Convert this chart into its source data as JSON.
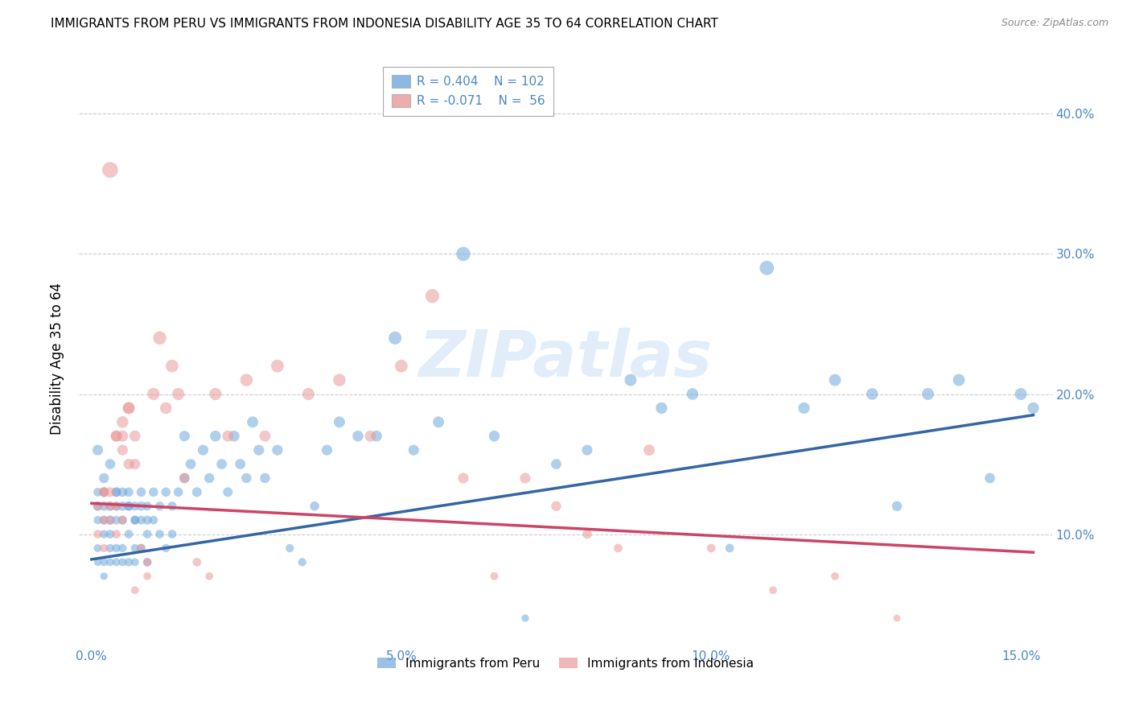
{
  "title": "IMMIGRANTS FROM PERU VS IMMIGRANTS FROM INDONESIA DISABILITY AGE 35 TO 64 CORRELATION CHART",
  "source": "Source: ZipAtlas.com",
  "xlabel_ticks": [
    "0.0%",
    "5.0%",
    "10.0%",
    "15.0%"
  ],
  "xlabel_tick_vals": [
    0.0,
    0.05,
    0.1,
    0.15
  ],
  "ylabel_ticks": [
    "10.0%",
    "20.0%",
    "30.0%",
    "40.0%"
  ],
  "ylabel_tick_vals": [
    0.1,
    0.2,
    0.3,
    0.4
  ],
  "xlim": [
    -0.002,
    0.155
  ],
  "ylim": [
    0.02,
    0.43
  ],
  "ylabel": "Disability Age 35 to 64",
  "legend_peru_r": "R = 0.404",
  "legend_peru_n": "N = 102",
  "legend_indonesia_r": "R = -0.071",
  "legend_indonesia_n": "N =  56",
  "peru_color": "#6fa8dc",
  "indonesia_color": "#ea9999",
  "peru_line_color": "#3465a4",
  "indonesia_line_color": "#cc4466",
  "trendline_peru_x0": 0.0,
  "trendline_peru_y0": 0.082,
  "trendline_peru_x1": 0.152,
  "trendline_peru_y1": 0.185,
  "trendline_indo_x0": 0.0,
  "trendline_indo_y0": 0.122,
  "trendline_indo_x1": 0.152,
  "trendline_indo_y1": 0.087,
  "background_color": "#ffffff",
  "grid_color": "#cccccc",
  "axis_color": "#4a86c8",
  "title_fontsize": 11,
  "source_fontsize": 9,
  "legend_fontsize": 11,
  "watermark": "ZIPatlas",
  "peru_scatter_x": [
    0.001,
    0.001,
    0.001,
    0.001,
    0.001,
    0.002,
    0.002,
    0.002,
    0.002,
    0.002,
    0.002,
    0.003,
    0.003,
    0.003,
    0.003,
    0.003,
    0.004,
    0.004,
    0.004,
    0.004,
    0.004,
    0.005,
    0.005,
    0.005,
    0.005,
    0.006,
    0.006,
    0.006,
    0.006,
    0.007,
    0.007,
    0.007,
    0.007,
    0.008,
    0.008,
    0.008,
    0.009,
    0.009,
    0.009,
    0.01,
    0.01,
    0.011,
    0.011,
    0.012,
    0.012,
    0.013,
    0.013,
    0.014,
    0.015,
    0.015,
    0.016,
    0.017,
    0.018,
    0.019,
    0.02,
    0.021,
    0.022,
    0.023,
    0.024,
    0.025,
    0.026,
    0.027,
    0.028,
    0.03,
    0.032,
    0.034,
    0.036,
    0.038,
    0.04,
    0.043,
    0.046,
    0.049,
    0.052,
    0.056,
    0.06,
    0.065,
    0.07,
    0.075,
    0.08,
    0.087,
    0.092,
    0.097,
    0.103,
    0.109,
    0.115,
    0.12,
    0.126,
    0.13,
    0.135,
    0.14,
    0.145,
    0.15,
    0.152,
    0.001,
    0.002,
    0.003,
    0.004,
    0.005,
    0.006,
    0.007,
    0.008,
    0.009
  ],
  "peru_scatter_y": [
    0.13,
    0.11,
    0.09,
    0.08,
    0.12,
    0.13,
    0.11,
    0.1,
    0.08,
    0.07,
    0.12,
    0.11,
    0.09,
    0.08,
    0.12,
    0.1,
    0.13,
    0.11,
    0.09,
    0.08,
    0.12,
    0.11,
    0.09,
    0.13,
    0.08,
    0.12,
    0.1,
    0.08,
    0.13,
    0.11,
    0.09,
    0.12,
    0.08,
    0.11,
    0.09,
    0.13,
    0.12,
    0.1,
    0.08,
    0.13,
    0.11,
    0.12,
    0.1,
    0.13,
    0.09,
    0.12,
    0.1,
    0.13,
    0.17,
    0.14,
    0.15,
    0.13,
    0.16,
    0.14,
    0.17,
    0.15,
    0.13,
    0.17,
    0.15,
    0.14,
    0.18,
    0.16,
    0.14,
    0.16,
    0.09,
    0.08,
    0.12,
    0.16,
    0.18,
    0.17,
    0.17,
    0.24,
    0.16,
    0.18,
    0.3,
    0.17,
    0.04,
    0.15,
    0.16,
    0.21,
    0.19,
    0.2,
    0.09,
    0.29,
    0.19,
    0.21,
    0.2,
    0.12,
    0.2,
    0.21,
    0.14,
    0.2,
    0.19,
    0.16,
    0.14,
    0.15,
    0.13,
    0.12,
    0.12,
    0.11,
    0.12,
    0.11
  ],
  "peru_sizes": [
    60,
    55,
    50,
    45,
    70,
    65,
    60,
    55,
    50,
    45,
    70,
    65,
    55,
    50,
    70,
    60,
    65,
    60,
    55,
    50,
    65,
    60,
    55,
    70,
    50,
    65,
    60,
    55,
    70,
    60,
    55,
    65,
    50,
    60,
    55,
    70,
    65,
    60,
    55,
    70,
    60,
    65,
    60,
    70,
    55,
    65,
    60,
    70,
    90,
    80,
    85,
    75,
    90,
    80,
    95,
    85,
    75,
    95,
    85,
    80,
    100,
    90,
    80,
    90,
    55,
    55,
    70,
    90,
    100,
    95,
    95,
    135,
    90,
    100,
    160,
    95,
    45,
    85,
    90,
    115,
    105,
    110,
    60,
    165,
    105,
    115,
    110,
    80,
    115,
    115,
    85,
    115,
    105,
    90,
    80,
    85,
    75,
    70,
    70,
    65,
    70,
    65
  ],
  "indonesia_scatter_x": [
    0.001,
    0.001,
    0.002,
    0.002,
    0.002,
    0.003,
    0.003,
    0.003,
    0.004,
    0.004,
    0.004,
    0.005,
    0.005,
    0.005,
    0.006,
    0.006,
    0.007,
    0.007,
    0.008,
    0.009,
    0.009,
    0.01,
    0.011,
    0.012,
    0.013,
    0.014,
    0.015,
    0.017,
    0.019,
    0.02,
    0.022,
    0.025,
    0.028,
    0.03,
    0.035,
    0.04,
    0.045,
    0.05,
    0.055,
    0.06,
    0.065,
    0.07,
    0.075,
    0.08,
    0.085,
    0.09,
    0.1,
    0.11,
    0.12,
    0.13,
    0.002,
    0.003,
    0.004,
    0.005,
    0.006,
    0.007
  ],
  "indonesia_scatter_y": [
    0.12,
    0.1,
    0.13,
    0.11,
    0.09,
    0.13,
    0.11,
    0.36,
    0.12,
    0.1,
    0.17,
    0.18,
    0.17,
    0.11,
    0.19,
    0.15,
    0.17,
    0.06,
    0.09,
    0.08,
    0.07,
    0.2,
    0.24,
    0.19,
    0.22,
    0.2,
    0.14,
    0.08,
    0.07,
    0.2,
    0.17,
    0.21,
    0.17,
    0.22,
    0.2,
    0.21,
    0.17,
    0.22,
    0.27,
    0.14,
    0.07,
    0.14,
    0.12,
    0.1,
    0.09,
    0.16,
    0.09,
    0.06,
    0.07,
    0.04,
    0.13,
    0.12,
    0.17,
    0.16,
    0.19,
    0.15
  ],
  "indonesia_sizes": [
    70,
    60,
    75,
    65,
    55,
    75,
    65,
    200,
    70,
    60,
    100,
    110,
    100,
    65,
    115,
    90,
    100,
    50,
    60,
    60,
    50,
    120,
    140,
    110,
    130,
    120,
    85,
    60,
    50,
    120,
    100,
    125,
    100,
    130,
    120,
    125,
    100,
    130,
    155,
    90,
    50,
    90,
    80,
    70,
    60,
    100,
    60,
    50,
    50,
    40,
    80,
    70,
    100,
    90,
    110,
    90
  ]
}
